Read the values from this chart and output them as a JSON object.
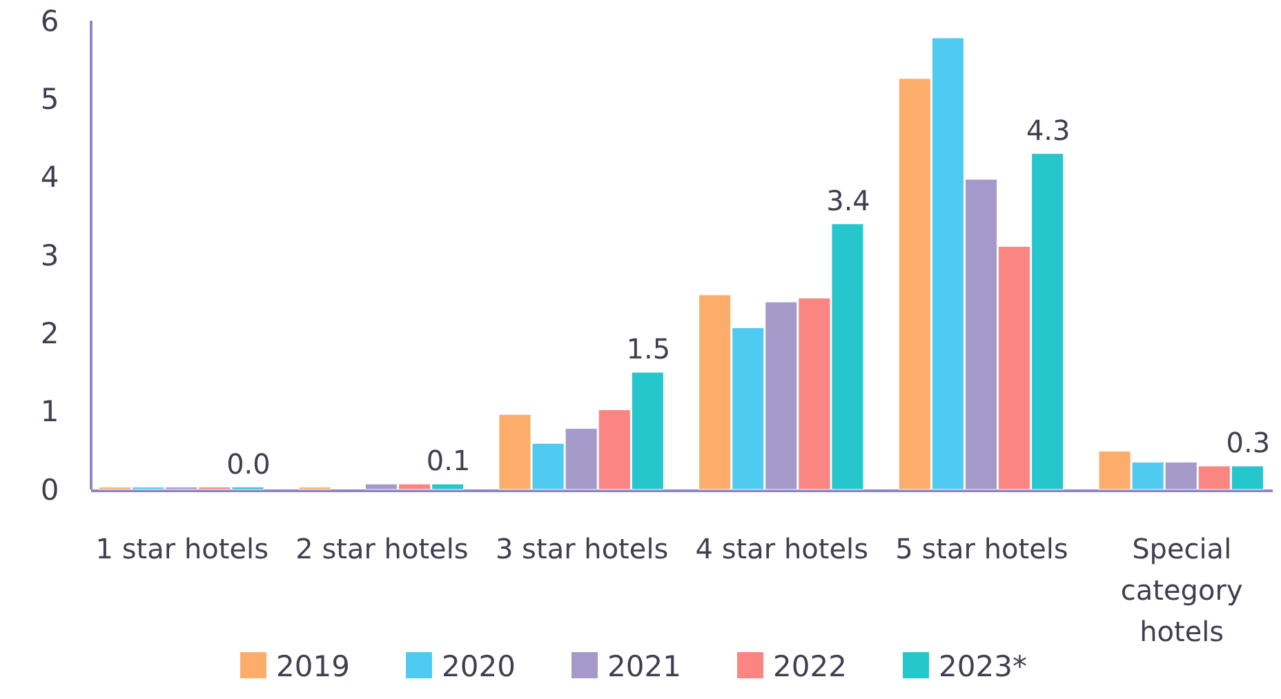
{
  "chart_data": {
    "type": "bar",
    "categories": [
      "1 star hotels",
      "2 star hotels",
      "3 star hotels",
      "4 star hotels",
      "5 star hotels",
      "Special category hotels"
    ],
    "ylim": [
      0,
      6
    ],
    "yticks": [
      0,
      1,
      2,
      3,
      4,
      5,
      6
    ],
    "grid": false,
    "legend": "bottom",
    "series": [
      {
        "name": "2019",
        "color": "#fdad6b",
        "values": [
          0.03,
          0.03,
          0.96,
          2.49,
          5.26,
          0.49
        ]
      },
      {
        "name": "2020",
        "color": "#4fcaf1",
        "values": [
          0.03,
          0,
          0.59,
          2.07,
          5.78,
          0.35
        ]
      },
      {
        "name": "2021",
        "color": "#a499c9",
        "values": [
          0.03,
          0.07,
          0.78,
          2.4,
          3.97,
          0.35
        ]
      },
      {
        "name": "2022",
        "color": "#fa8582",
        "values": [
          0.03,
          0.07,
          1.02,
          2.45,
          3.11,
          0.3
        ]
      },
      {
        "name": "2023*",
        "color": "#26c7cc",
        "values": [
          0.03,
          0.07,
          1.5,
          3.4,
          4.3,
          0.3
        ],
        "value_labels": [
          "0.0",
          "0.1",
          "1.5",
          "3.4",
          "4.3",
          "0.3"
        ]
      }
    ]
  }
}
